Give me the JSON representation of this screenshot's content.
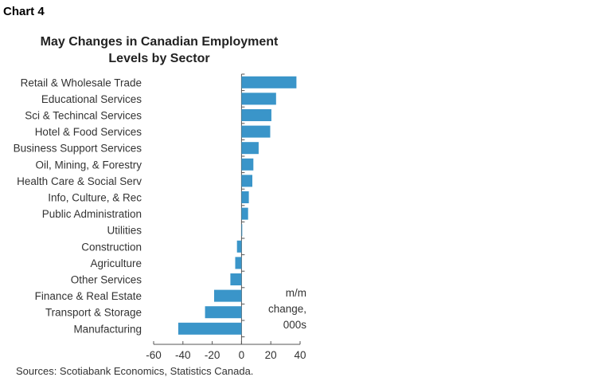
{
  "chart_label": "Chart 4",
  "source": "Sources: Scotiabank Economics, Statistics Canada.",
  "chart_data": {
    "type": "bar",
    "orientation": "horizontal",
    "title": "May Changes in Canadian Employment Levels by Sector",
    "title_lines": [
      "May Changes in Canadian Employment",
      "Levels by Sector"
    ],
    "categories": [
      "Retail & Wholesale Trade",
      "Educational Services",
      "Sci & Techincal Services",
      "Hotel & Food Services",
      "Business Support Services",
      "Oil, Mining, & Forestry",
      "Health Care & Social Serv",
      "Info, Culture, & Rec",
      "Public Administration",
      "Utilities",
      "Construction",
      "Agriculture",
      "Other Services",
      "Finance & Real Estate",
      "Transport & Storage",
      "Manufacturing"
    ],
    "values": [
      37.5,
      23.6,
      20.4,
      19.6,
      11.7,
      8.1,
      7.4,
      5.0,
      4.5,
      0.5,
      -3.1,
      -4.3,
      -7.6,
      -18.7,
      -24.9,
      -43.2
    ],
    "xlim": [
      -60,
      40
    ],
    "xticks": [
      "-60",
      "-40",
      "-20",
      "0",
      "20",
      "40"
    ],
    "xtick_values": [
      -60,
      -40,
      -20,
      0,
      20,
      40
    ],
    "annotation": [
      "m/m",
      "change,",
      "000s"
    ],
    "color": "#3a95c9",
    "grid": false
  }
}
